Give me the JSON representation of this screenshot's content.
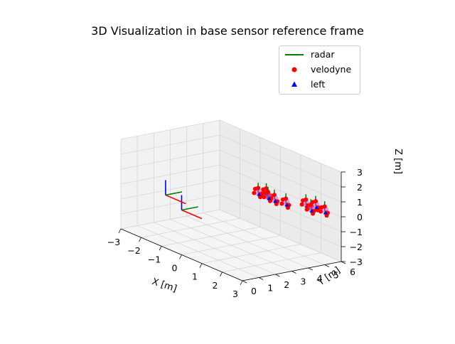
{
  "chart_data": {
    "type": "scatter",
    "title": "3D Visualization in base sensor reference frame",
    "xlabel": "X [m]",
    "ylabel": "Y [m]",
    "zlabel": "Z [m]",
    "xlim": [
      -3,
      3
    ],
    "ylim": [
      0,
      6
    ],
    "zlim": [
      -3,
      3
    ],
    "xticks": [
      "−3",
      "−2",
      "−1",
      "0",
      "1",
      "2",
      "3"
    ],
    "yticks": [
      "0",
      "1",
      "2",
      "3",
      "4",
      "5",
      "6"
    ],
    "zticks": [
      "−3",
      "−2",
      "−1",
      "0",
      "1",
      "2",
      "3"
    ],
    "grid": true,
    "legend_position": "top-right",
    "legend": [
      {
        "label": "radar",
        "marker": "line",
        "color": "#008000"
      },
      {
        "label": "velodyne",
        "marker": "circle",
        "color": "#ff0000"
      },
      {
        "label": "left",
        "marker": "triangle",
        "color": "#0000ff"
      }
    ],
    "axis_colors": {
      "x": "#ff0000",
      "y": "#008000",
      "z": "#0000ff"
    },
    "frames": [
      {
        "origin": [
          0,
          0,
          0
        ],
        "length": 1.0
      },
      {
        "origin": [
          -1.2,
          0.5,
          0.2
        ],
        "length": 1.0
      }
    ],
    "targets": [
      {
        "origin": [
          0.2,
          4.4,
          0.4
        ],
        "length": 0.5
      },
      {
        "origin": [
          0.6,
          4.4,
          0.6
        ],
        "length": 0.5
      },
      {
        "origin": [
          1.0,
          4.4,
          0.4
        ],
        "length": 0.5
      },
      {
        "origin": [
          0.2,
          5.0,
          0.0
        ],
        "length": 0.5
      },
      {
        "origin": [
          1.0,
          5.1,
          0.0
        ],
        "length": 0.5
      },
      {
        "origin": [
          1.5,
          5.7,
          0.1
        ],
        "length": 0.5
      },
      {
        "origin": [
          1.9,
          5.8,
          0.2
        ],
        "length": 0.5
      },
      {
        "origin": [
          1.5,
          6.0,
          -0.3
        ],
        "length": 0.5
      },
      {
        "origin": [
          2.1,
          6.1,
          -0.1
        ],
        "length": 0.5
      }
    ]
  }
}
